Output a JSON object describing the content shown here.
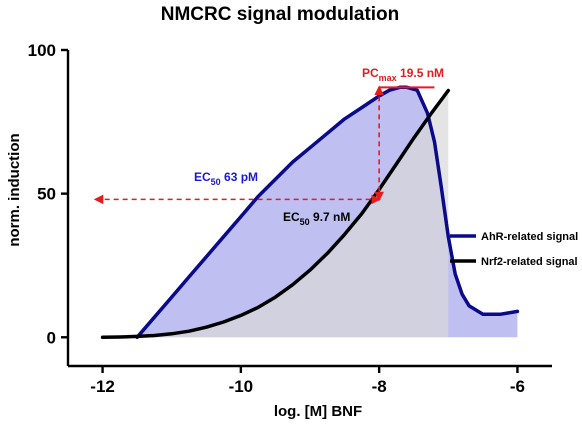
{
  "chart_data": {
    "type": "line",
    "title": "NMCRC signal modulation",
    "xlabel": "log. [M] BNF",
    "ylabel": "norm. induction",
    "xlim": [
      -12.5,
      -5.5
    ],
    "ylim": [
      -10,
      100
    ],
    "xticks": [
      -12,
      -10,
      -8,
      -6
    ],
    "yticks": [
      0,
      50,
      100
    ],
    "grid": false,
    "legend_position": "right",
    "series": [
      {
        "name": "AhR-related signal",
        "color": "#0a0a8a",
        "fill": "#b4b4f0",
        "x": [
          -11.5,
          -11.25,
          -11.0,
          -10.75,
          -10.5,
          -10.25,
          -10.0,
          -9.75,
          -9.5,
          -9.25,
          -9.0,
          -8.75,
          -8.5,
          -8.25,
          -8.0,
          -7.85,
          -7.7,
          -7.6,
          -7.45,
          -7.3,
          -7.2,
          -7.1,
          -7.0,
          -6.9,
          -6.8,
          -6.7,
          -6.5,
          -6.25,
          -6.0
        ],
        "y": [
          0,
          7,
          14,
          21,
          28,
          35,
          42,
          49,
          55,
          61,
          66,
          71,
          76,
          80,
          84,
          86,
          87,
          87,
          86,
          78,
          68,
          52,
          35,
          22,
          15,
          11,
          8,
          8,
          9
        ]
      },
      {
        "name": "Nrf2-related signal",
        "color": "#000000",
        "fill": "#d8d8d8",
        "x": [
          -12.0,
          -11.75,
          -11.5,
          -11.25,
          -11.0,
          -10.75,
          -10.5,
          -10.25,
          -10.0,
          -9.75,
          -9.5,
          -9.25,
          -9.0,
          -8.75,
          -8.5,
          -8.25,
          -8.0,
          -7.75,
          -7.5,
          -7.25,
          -7.0
        ],
        "y": [
          0,
          0.1,
          0.3,
          0.6,
          1.2,
          2.1,
          3.5,
          5.3,
          7.6,
          10.4,
          14,
          18.3,
          23.4,
          29.2,
          35.8,
          43.1,
          51.4,
          60.3,
          69.3,
          77.8,
          85.9
        ]
      }
    ],
    "annotations": {
      "ec50_ahr": {
        "main": "EC",
        "sub": "50",
        "value": " 63 pM",
        "color": "#1a1ad0"
      },
      "ec50_nrf2": {
        "main": "EC",
        "sub": "50",
        "value": " 9.7 nM",
        "color": "#000000"
      },
      "pcmax": {
        "main": "PC",
        "sub": "max",
        "value": " 19.5 nM",
        "color": "#e51c1c"
      }
    },
    "markers": {
      "ec50_level": 48,
      "ec50_ahr_x": -12.1,
      "ec50_nrf2_x": -8.0,
      "pcmax_x_start": -8.0,
      "pcmax_x_end": -7.2,
      "pcmax_level": 87
    }
  }
}
